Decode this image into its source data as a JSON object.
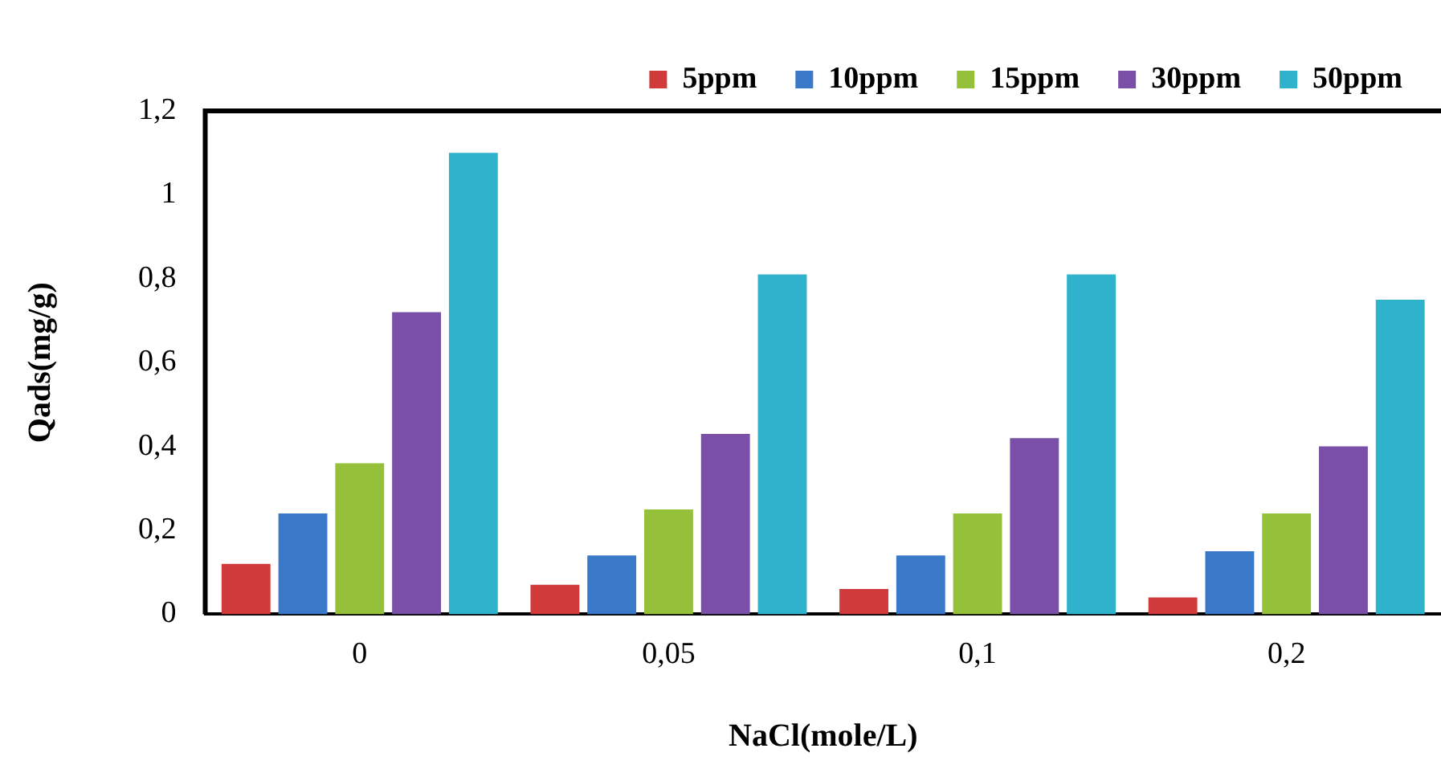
{
  "chart_data": {
    "type": "bar",
    "xlabel": "NaCl(mole/L)",
    "ylabel": "Qads(mg/g)",
    "categories": [
      "0",
      "0,05",
      "0,1",
      "0,2"
    ],
    "series": [
      {
        "name": "5ppm",
        "color": "#d03a3a",
        "values": [
          0.12,
          0.07,
          0.06,
          0.04
        ]
      },
      {
        "name": "10ppm",
        "color": "#3a78c8",
        "values": [
          0.24,
          0.14,
          0.14,
          0.15
        ]
      },
      {
        "name": "15ppm",
        "color": "#94c03a",
        "values": [
          0.36,
          0.25,
          0.24,
          0.24
        ]
      },
      {
        "name": "30ppm",
        "color": "#7a4fa8",
        "values": [
          0.72,
          0.43,
          0.42,
          0.4
        ]
      },
      {
        "name": "50ppm",
        "color": "#2fb2cc",
        "values": [
          1.1,
          0.81,
          0.81,
          0.75
        ]
      }
    ],
    "ylim": [
      0,
      1.2
    ],
    "yticks": [
      0,
      {
        "value": 0.2,
        "label": "0,2"
      },
      {
        "value": 0.4,
        "label": "0,4"
      },
      {
        "value": 0.6,
        "label": "0,6"
      },
      {
        "value": 0.8,
        "label": "0,8"
      },
      1,
      {
        "value": 1.2,
        "label": "1,2"
      }
    ],
    "grid": false,
    "legend": "top right"
  }
}
